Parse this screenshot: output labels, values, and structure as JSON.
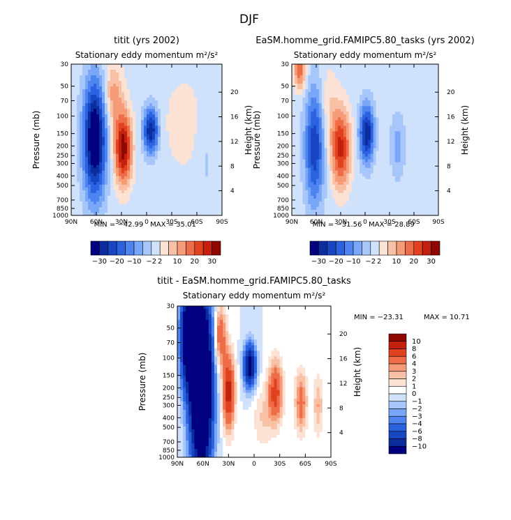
{
  "page": {
    "title": "DJF"
  },
  "units_label": "Stationary eddy momentum",
  "units_value": "m²/s²",
  "chart_data": [
    {
      "type": "heatmap",
      "id": "model_a",
      "title": "titit (yrs 2002)",
      "subtitle": "Stationary eddy momentum",
      "units": "m²/s²",
      "xlabel": "",
      "ylabel": "Pressure (mb)",
      "ylabel_right": "Height (km)",
      "x_ticks": [
        "90N",
        "60N",
        "30N",
        "0",
        "30S",
        "60S",
        "90S"
      ],
      "y_ticks": [
        "30",
        "50",
        "70",
        "100",
        "150",
        "200",
        "250",
        "300",
        "400",
        "500",
        "700",
        "850",
        "1000"
      ],
      "y_right_ticks": [
        "20",
        "16",
        "12",
        "8",
        "4"
      ],
      "min_label": "MIN = −42.99",
      "max_label": "MAX =  35.01",
      "min": -42.99,
      "max": 35.01,
      "colorbar_ticks": [
        "−30",
        "−20",
        "−10",
        "−2",
        "2",
        "10",
        "20",
        "30"
      ],
      "features": [
        {
          "lat": 62,
          "p": 170,
          "value": -40,
          "sx": 9,
          "sp": 0.9
        },
        {
          "lat": 28,
          "p": 210,
          "value": 34,
          "sx": 7,
          "sp": 0.55
        },
        {
          "lat": -5,
          "p": 140,
          "value": -30,
          "sx": 6,
          "sp": 0.35
        },
        {
          "lat": 40,
          "p": 60,
          "value": 12,
          "sx": 8,
          "sp": 0.5
        },
        {
          "lat": -45,
          "p": 120,
          "value": 4,
          "sx": 18,
          "sp": 0.8
        },
        {
          "lat": -70,
          "p": 250,
          "value": -3,
          "sx": 8,
          "sp": 0.8
        }
      ]
    },
    {
      "type": "heatmap",
      "id": "model_b",
      "title": "EaSM.homme_grid.FAMIPC5.80_tasks (yrs 2002)",
      "subtitle": "Stationary eddy momentum",
      "units": "m²/s²",
      "xlabel": "",
      "ylabel": "Pressure (mb)",
      "ylabel_right": "Height (km)",
      "x_ticks": [
        "90N",
        "60N",
        "30N",
        "0",
        "30S",
        "60S",
        "90S"
      ],
      "y_ticks": [
        "30",
        "50",
        "70",
        "100",
        "150",
        "200",
        "250",
        "300",
        "400",
        "500",
        "700",
        "850",
        "1000"
      ],
      "y_right_ticks": [
        "20",
        "16",
        "12",
        "8",
        "4"
      ],
      "min_label": "MIN = −31.56",
      "max_label": "MAX =  28.89",
      "min": -31.56,
      "max": 28.89,
      "colorbar_ticks": [
        "−30",
        "−20",
        "−10",
        "−2",
        "2",
        "10",
        "20",
        "30"
      ],
      "features": [
        {
          "lat": 62,
          "p": 200,
          "value": -24,
          "sx": 8,
          "sp": 0.9
        },
        {
          "lat": 30,
          "p": 210,
          "value": 27,
          "sx": 8,
          "sp": 0.6
        },
        {
          "lat": -2,
          "p": 150,
          "value": -30,
          "sx": 6,
          "sp": 0.45
        },
        {
          "lat": 80,
          "p": 35,
          "value": 18,
          "sx": 5,
          "sp": 0.3
        },
        {
          "lat": -40,
          "p": 200,
          "value": -8,
          "sx": 6,
          "sp": 0.5
        },
        {
          "lat": 45,
          "p": 80,
          "value": 6,
          "sx": 8,
          "sp": 0.6
        }
      ]
    },
    {
      "type": "heatmap",
      "id": "difference",
      "title": "titit - EaSM.homme_grid.FAMIPC5.80_tasks",
      "subtitle": "Stationary eddy momentum",
      "units": "m²/s²",
      "xlabel": "",
      "ylabel": "Pressure (mb)",
      "ylabel_right": "Height (km)",
      "x_ticks": [
        "90N",
        "60N",
        "30N",
        "0",
        "30S",
        "60S",
        "90S"
      ],
      "y_ticks": [
        "30",
        "50",
        "70",
        "100",
        "150",
        "200",
        "250",
        "300",
        "400",
        "500",
        "700",
        "850",
        "1000"
      ],
      "y_right_ticks": [
        "20",
        "16",
        "12",
        "8",
        "4"
      ],
      "min_label": "MIN = −23.31",
      "max_label": "MAX =  10.71",
      "min": -23.31,
      "max": 10.71,
      "colorbar_ticks": [
        "10",
        "8",
        "6",
        "4",
        "3",
        "2",
        "1",
        "0",
        "−1",
        "−2",
        "−3",
        "−4",
        "−6",
        "−8",
        "−10"
      ],
      "features": [
        {
          "lat": 62,
          "p": 180,
          "value": -23,
          "sx": 9,
          "sp": 1.4
        },
        {
          "lat": 78,
          "p": 60,
          "value": -14,
          "sx": 6,
          "sp": 0.8
        },
        {
          "lat": 30,
          "p": 220,
          "value": 9,
          "sx": 5,
          "sp": 0.6
        },
        {
          "lat": 40,
          "p": 60,
          "value": 6,
          "sx": 5,
          "sp": 0.5
        },
        {
          "lat": 5,
          "p": 120,
          "value": -12,
          "sx": 5,
          "sp": 0.35
        },
        {
          "lat": -25,
          "p": 220,
          "value": 7,
          "sx": 6,
          "sp": 0.5
        },
        {
          "lat": -55,
          "p": 280,
          "value": 5,
          "sx": 5,
          "sp": 0.5
        },
        {
          "lat": -75,
          "p": 300,
          "value": 3,
          "sx": 4,
          "sp": 0.5
        },
        {
          "lat": -10,
          "p": 400,
          "value": 2,
          "sx": 8,
          "sp": 0.5
        }
      ]
    }
  ]
}
